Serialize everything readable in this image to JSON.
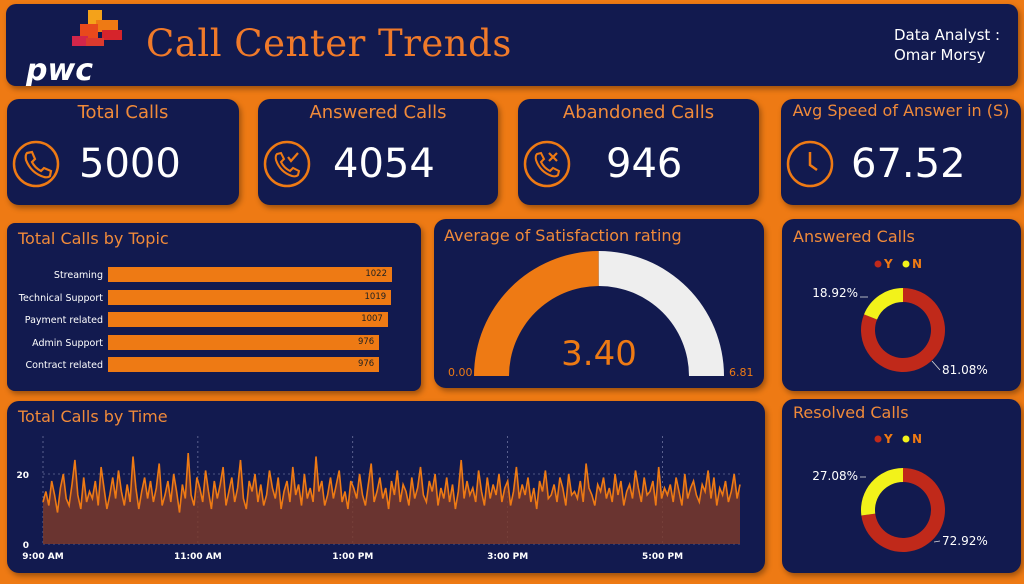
{
  "header": {
    "title": "Call Center Trends",
    "logo_text": "pwc",
    "analyst_label": "Data Analyst :",
    "analyst_name": "Omar Morsy"
  },
  "kpis": [
    {
      "title": "Total Calls",
      "value": "5000",
      "icon": "phone-icon"
    },
    {
      "title": "Answered Calls",
      "value": "4054",
      "icon": "phone-check-icon"
    },
    {
      "title": "Abandoned Calls",
      "value": "946",
      "icon": "phone-x-icon"
    },
    {
      "title": "Avg Speed of Answer in (S)",
      "value": "67.52",
      "icon": "clock-icon"
    }
  ],
  "colors": {
    "background": "#ee7a14",
    "panel": "#121a4f",
    "accent": "#ee7a14",
    "yes": "#c0291a",
    "no": "#f2f21a",
    "gauge_rest": "#eeeeee"
  },
  "chart_data": [
    {
      "type": "bar",
      "title": "Total Calls by Topic",
      "orientation": "horizontal",
      "categories": [
        "Streaming",
        "Technical Support",
        "Payment related",
        "Admin Support",
        "Contract related"
      ],
      "values": [
        1022,
        1019,
        1007,
        976,
        976
      ]
    },
    {
      "type": "gauge",
      "title": "Average of Satisfaction rating",
      "value": 3.4,
      "value_label": "3.40",
      "min": 0,
      "max": 6.81,
      "min_label": "0.00",
      "max_label": "6.81"
    },
    {
      "type": "pie",
      "title": "Answered Calls",
      "legend": [
        "Y",
        "N"
      ],
      "legend_position": "top",
      "values": [
        81.08,
        18.92
      ],
      "labels": [
        "81.08%",
        "18.92%"
      ]
    },
    {
      "type": "pie",
      "title": "Resolved Calls",
      "legend": [
        "Y",
        "N"
      ],
      "legend_position": "top",
      "values": [
        72.92,
        27.08
      ],
      "labels": [
        "72.92%",
        "27.08%"
      ]
    },
    {
      "type": "area",
      "title": "Total Calls by Time",
      "x_range": [
        "9:00 AM",
        "6:00 PM"
      ],
      "xticks": [
        "9:00 AM",
        "11:00 AM",
        "1:00 PM",
        "3:00 PM",
        "5:00 PM"
      ],
      "yticks": [
        0,
        20
      ],
      "ylim": [
        0,
        30
      ],
      "grid": true,
      "values": [
        12,
        15,
        11,
        18,
        14,
        9,
        16,
        20,
        13,
        11,
        17,
        24,
        14,
        10,
        19,
        12,
        15,
        13,
        18,
        11,
        22,
        16,
        10,
        14,
        19,
        13,
        21,
        15,
        11,
        17,
        12,
        25,
        16,
        10,
        15,
        19,
        13,
        18,
        12,
        16,
        23,
        11,
        14,
        18,
        12,
        20,
        15,
        9,
        17,
        13,
        26,
        14,
        11,
        19,
        16,
        12,
        21,
        15,
        10,
        18,
        13,
        17,
        22,
        11,
        15,
        19,
        12,
        16,
        24,
        13,
        10,
        18,
        15,
        20,
        12,
        17,
        11,
        14,
        21,
        16,
        13,
        19,
        10,
        15,
        18,
        12,
        22,
        14,
        17,
        11,
        20,
        13,
        16,
        12,
        25,
        15,
        18,
        11,
        14,
        19,
        13,
        17,
        21,
        12,
        15,
        10,
        18,
        16,
        13,
        20,
        14,
        11,
        17,
        23,
        12,
        15,
        19,
        13,
        16,
        10,
        18,
        14,
        21,
        12,
        17,
        15,
        11,
        19,
        13,
        16,
        22,
        14,
        12,
        18,
        15,
        20,
        11,
        16,
        13,
        19,
        12,
        17,
        10,
        15,
        24,
        13,
        18,
        14,
        16,
        12,
        21,
        15,
        11,
        19,
        13,
        17,
        14,
        20,
        12,
        16,
        18,
        11,
        15,
        22,
        13,
        17,
        14,
        19,
        12,
        16,
        10,
        18,
        15,
        21,
        13,
        14,
        17,
        12,
        19,
        16,
        11,
        20,
        14,
        15,
        13,
        18,
        12,
        23,
        16,
        14,
        11,
        17,
        15,
        19,
        13,
        16,
        12,
        20,
        14,
        18,
        11,
        15,
        17,
        13,
        21,
        16,
        12,
        19,
        14,
        15,
        18,
        11,
        22,
        13,
        16,
        14,
        17,
        12,
        19,
        15,
        11,
        20,
        13,
        16,
        18,
        14,
        12,
        17,
        15,
        21,
        13,
        19,
        11,
        16,
        14,
        18,
        12,
        15,
        20,
        13,
        17
      ]
    }
  ]
}
